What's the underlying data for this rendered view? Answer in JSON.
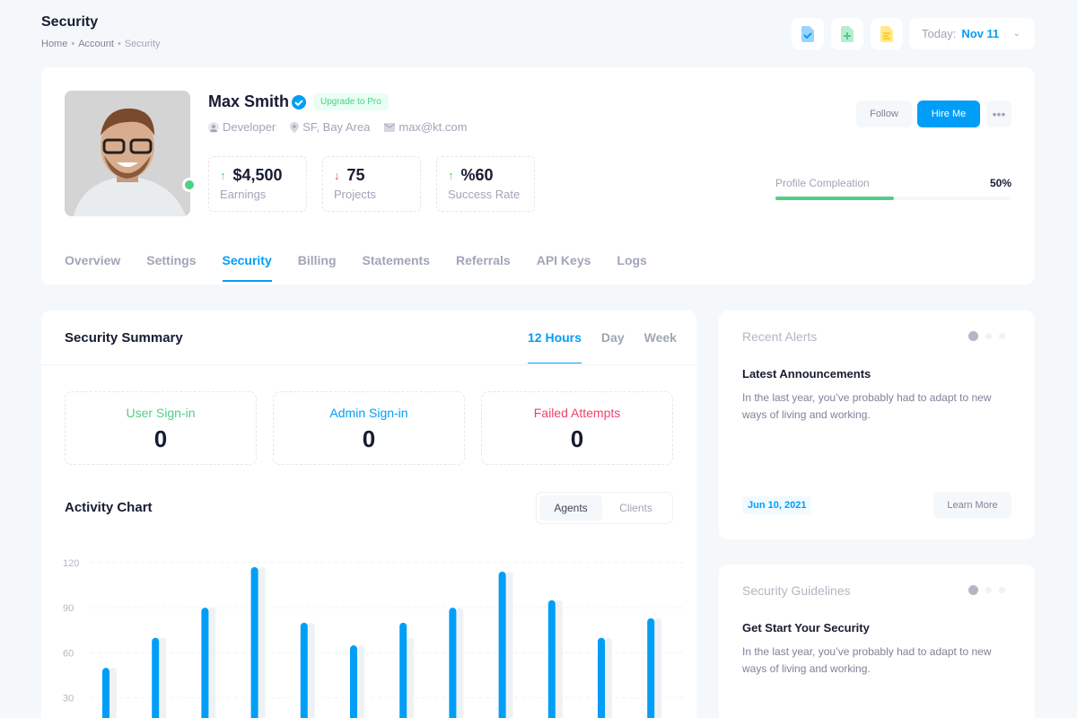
{
  "header": {
    "title": "Security",
    "breadcrumb": [
      "Home",
      "Account",
      "Security"
    ],
    "date_label": "Today:",
    "date_value": "Nov 11",
    "toolbar_icons": [
      "file-check-icon",
      "file-plus-icon",
      "file-text-icon"
    ]
  },
  "profile": {
    "name": "Max Smith",
    "badge": "Upgrade to Pro",
    "role": "Developer",
    "location": "SF, Bay Area",
    "email": "max@kt.com",
    "stats": [
      {
        "value": "$4,500",
        "label": "Earnings",
        "trend": "up"
      },
      {
        "value": "75",
        "label": "Projects",
        "trend": "down"
      },
      {
        "value": "%60",
        "label": "Success Rate",
        "trend": "up"
      }
    ],
    "follow": "Follow",
    "hire": "Hire Me",
    "completion_label": "Profile Compleation",
    "completion_value": "50%",
    "completion_percent": 50,
    "status": "online"
  },
  "tabs": [
    "Overview",
    "Settings",
    "Security",
    "Billing",
    "Statements",
    "Referrals",
    "API Keys",
    "Logs"
  ],
  "active_tab": "Security",
  "summary": {
    "title": "Security Summary",
    "periods": [
      "12 Hours",
      "Day",
      "Week"
    ],
    "active_period": "12 Hours",
    "boxes": [
      {
        "label": "User Sign-in",
        "value": "0",
        "color": "#50cd89"
      },
      {
        "label": "Admin Sign-in",
        "value": "0",
        "color": "#009ef7"
      },
      {
        "label": "Failed Attempts",
        "value": "0",
        "color": "#f1416c"
      }
    ]
  },
  "activity": {
    "title": "Activity Chart",
    "toggle": [
      "Agents",
      "Clients"
    ],
    "active": "Agents"
  },
  "chart_data": {
    "type": "bar",
    "yticks": [
      "120",
      "90",
      "60",
      "30"
    ],
    "ylim": [
      0,
      120
    ],
    "grid": true,
    "series": [
      {
        "values": [
          50,
          70,
          90,
          117,
          80,
          65,
          80,
          90,
          114,
          95,
          70,
          83
        ],
        "color": "#009ef7"
      },
      {
        "values": [
          50,
          70,
          90,
          117,
          80,
          65,
          70,
          90,
          114,
          95,
          70,
          83
        ],
        "color": "#eff2f5"
      }
    ]
  },
  "alerts": {
    "title": "Recent Alerts",
    "heading": "Latest Announcements",
    "text": "In the last year, you’ve probably had to adapt to new ways of living and working.",
    "date": "Jun 10, 2021",
    "button": "Learn More"
  },
  "guidelines": {
    "title": "Security Guidelines",
    "heading": "Get Start Your Security",
    "text": "In the last year, you’ve probably had to adapt to new ways of living and working."
  }
}
